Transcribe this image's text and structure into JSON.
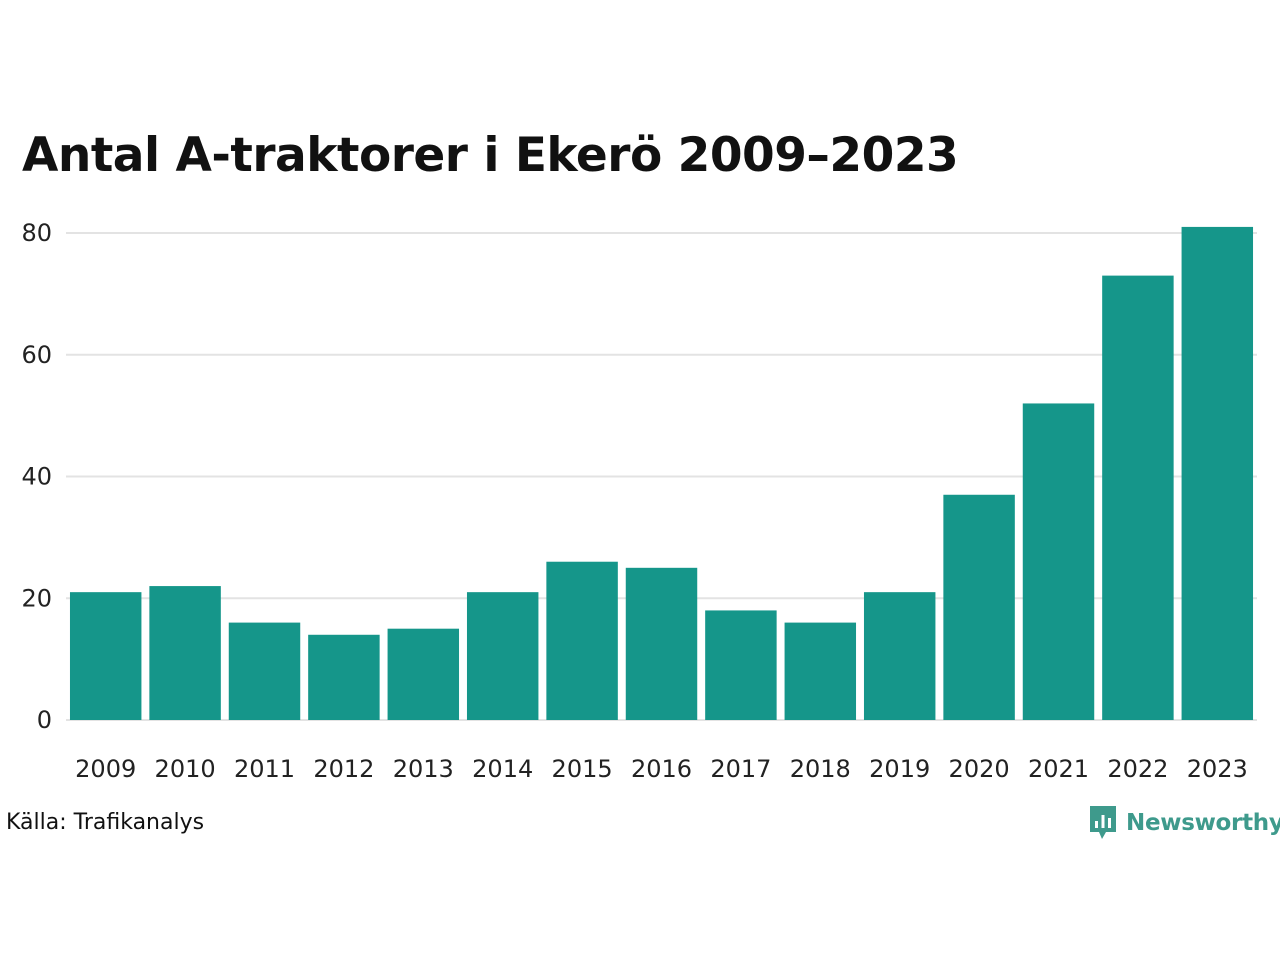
{
  "chart_data": {
    "type": "bar",
    "title": "Antal A-traktorer i Ekerö 2009–2023",
    "xlabel": "",
    "ylabel": "",
    "categories": [
      "2009",
      "2010",
      "2011",
      "2012",
      "2013",
      "2014",
      "2015",
      "2016",
      "2017",
      "2018",
      "2019",
      "2020",
      "2021",
      "2022",
      "2023"
    ],
    "values": [
      21,
      22,
      16,
      14,
      15,
      21,
      26,
      25,
      18,
      16,
      21,
      37,
      52,
      73,
      81
    ],
    "ylim": [
      0,
      80
    ],
    "yticks": [
      0,
      20,
      40,
      60,
      80
    ],
    "grid": true,
    "bar_color": "#15968a",
    "grid_color": "#e3e3e3"
  },
  "footer": {
    "source": "Källa: Trafikanalys",
    "brand": "Newsworthy",
    "brand_color": "#3e9a8c",
    "brand_icon": "newsworthy-logo-icon"
  }
}
